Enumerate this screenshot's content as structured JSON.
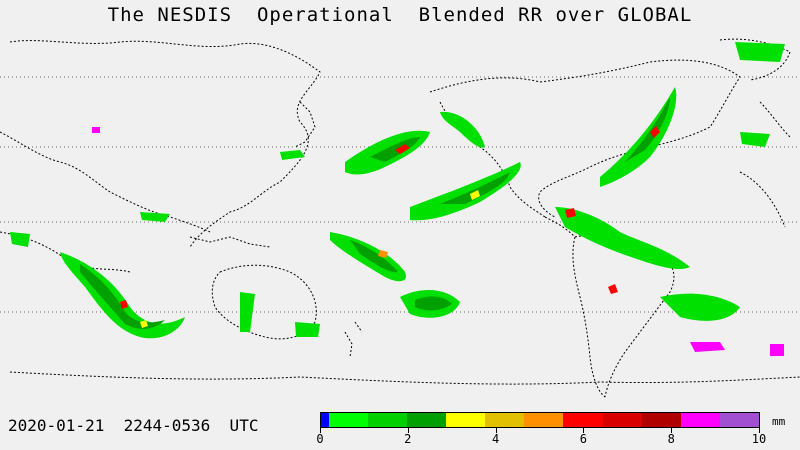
{
  "title": "The NESDIS  Operational  Blended RR over GLOBAL",
  "timestamp": "2020-01-21  2244-0536  UTC",
  "legend": {
    "unit": "mm",
    "tick_labels": [
      "0",
      "2",
      "4",
      "6",
      "8",
      "10"
    ],
    "colors": [
      "#0000ff",
      "#00ff00",
      "#00d000",
      "#00a000",
      "#ffff00",
      "#e0c000",
      "#ff9000",
      "#ff0000",
      "#d80000",
      "#b00000",
      "#ff00ff",
      "#a050d0"
    ]
  },
  "colors": {
    "background": "#f0f0f0",
    "coastline": "#000000",
    "gridline": "#666666"
  }
}
